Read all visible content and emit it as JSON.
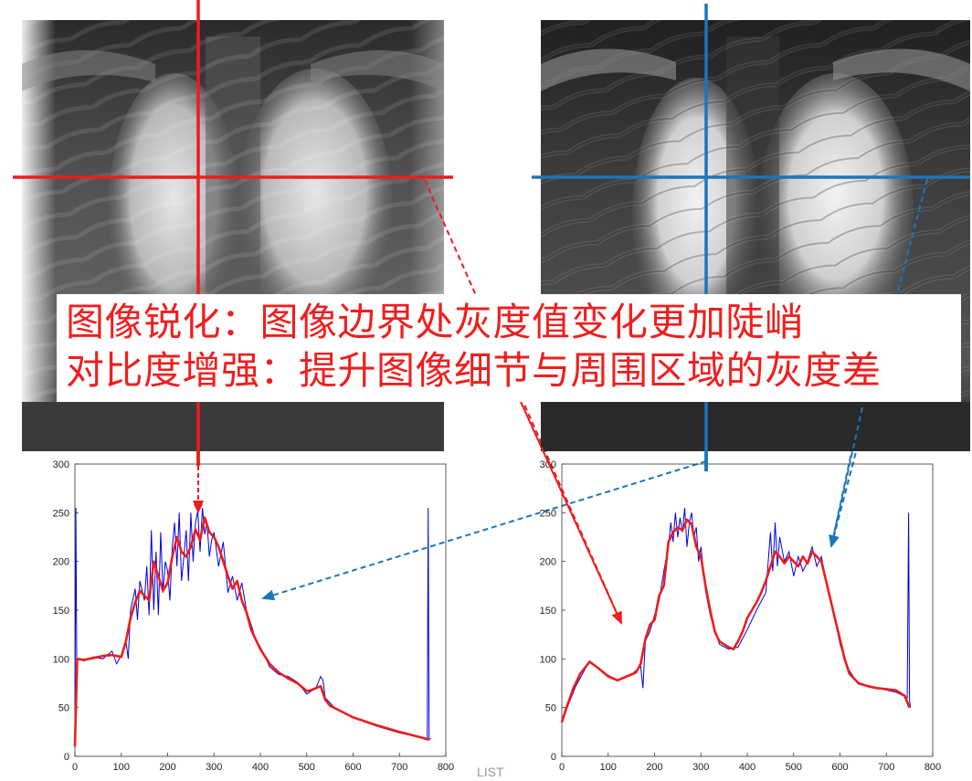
{
  "caption": {
    "line1": "图像锐化：图像边界处灰度值变化更加陡峭",
    "line2": "对比度增强：提升图像细节与周围区域的灰度差"
  },
  "watermark": "LIST",
  "colors": {
    "red_line": "#ee1c1c",
    "blue_line": "#1b75bc",
    "profile_raw": "#0000e6",
    "profile_smooth": "#ee1c1c"
  },
  "chart_data": [
    {
      "type": "line",
      "name": "original-profile",
      "xlim": [
        0,
        800
      ],
      "ylim": [
        0,
        300
      ],
      "xticks": [
        "0",
        "100",
        "200",
        "300",
        "400",
        "500",
        "600",
        "700",
        "800"
      ],
      "yticks": [
        "0",
        "50",
        "100",
        "150",
        "200",
        "250",
        "300"
      ],
      "smooth": {
        "x": [
          0,
          5,
          20,
          40,
          60,
          80,
          100,
          110,
          120,
          130,
          140,
          150,
          160,
          170,
          180,
          190,
          200,
          210,
          220,
          230,
          240,
          250,
          260,
          270,
          280,
          290,
          300,
          310,
          320,
          330,
          340,
          350,
          360,
          370,
          380,
          390,
          400,
          420,
          440,
          460,
          480,
          500,
          510,
          520,
          530,
          540,
          550,
          600,
          650,
          700,
          750,
          765
        ],
        "y": [
          10,
          100,
          99,
          101,
          103,
          104,
          102,
          118,
          142,
          158,
          170,
          165,
          160,
          200,
          185,
          170,
          178,
          205,
          225,
          210,
          205,
          215,
          233,
          222,
          245,
          230,
          225,
          215,
          200,
          185,
          172,
          180,
          160,
          148,
          130,
          120,
          110,
          95,
          86,
          80,
          75,
          67,
          68,
          70,
          72,
          58,
          52,
          40,
          32,
          25,
          19,
          17
        ]
      },
      "raw": {
        "x": [
          0,
          2,
          4,
          20,
          40,
          60,
          80,
          90,
          100,
          110,
          115,
          120,
          130,
          135,
          140,
          150,
          155,
          160,
          165,
          170,
          175,
          180,
          185,
          190,
          195,
          200,
          205,
          210,
          215,
          220,
          225,
          230,
          235,
          240,
          245,
          250,
          255,
          260,
          265,
          270,
          275,
          280,
          285,
          290,
          295,
          300,
          310,
          320,
          330,
          340,
          350,
          360,
          370,
          380,
          390,
          400,
          420,
          440,
          460,
          480,
          500,
          520,
          530,
          535,
          540,
          560,
          600,
          650,
          700,
          760,
          762,
          764,
          768
        ],
        "y": [
          20,
          255,
          100,
          98,
          102,
          100,
          108,
          95,
          104,
          118,
          100,
          150,
          172,
          140,
          180,
          160,
          195,
          145,
          232,
          150,
          210,
          145,
          230,
          168,
          200,
          190,
          160,
          215,
          240,
          195,
          250,
          180,
          205,
          232,
          180,
          250,
          200,
          240,
          252,
          210,
          255,
          228,
          240,
          205,
          222,
          230,
          195,
          220,
          168,
          185,
          160,
          178,
          150,
          135,
          120,
          112,
          92,
          84,
          82,
          76,
          64,
          70,
          82,
          78,
          60,
          50,
          40,
          31,
          24,
          18,
          255,
          18,
          18
        ]
      }
    },
    {
      "type": "line",
      "name": "enhanced-profile",
      "xlim": [
        0,
        800
      ],
      "ylim": [
        0,
        300
      ],
      "xticks": [
        "0",
        "100",
        "200",
        "300",
        "400",
        "500",
        "600",
        "700",
        "800"
      ],
      "yticks": [
        "0",
        "50",
        "100",
        "150",
        "200",
        "250",
        "300"
      ],
      "smooth": {
        "x": [
          0,
          10,
          25,
          40,
          60,
          80,
          100,
          120,
          140,
          160,
          170,
          180,
          190,
          200,
          210,
          220,
          230,
          240,
          250,
          260,
          270,
          280,
          290,
          300,
          310,
          320,
          330,
          340,
          350,
          360,
          370,
          380,
          390,
          400,
          410,
          420,
          430,
          440,
          450,
          460,
          470,
          480,
          490,
          500,
          510,
          520,
          530,
          540,
          550,
          560,
          570,
          580,
          590,
          600,
          610,
          620,
          640,
          660,
          680,
          700,
          720,
          740,
          750
        ],
        "y": [
          35,
          50,
          70,
          85,
          97,
          90,
          82,
          78,
          82,
          86,
          95,
          120,
          135,
          140,
          165,
          175,
          220,
          230,
          235,
          232,
          243,
          238,
          215,
          205,
          175,
          150,
          128,
          118,
          115,
          112,
          110,
          118,
          128,
          142,
          150,
          158,
          168,
          180,
          195,
          210,
          205,
          198,
          205,
          200,
          195,
          205,
          198,
          210,
          205,
          200,
          180,
          160,
          140,
          120,
          100,
          85,
          75,
          72,
          70,
          69,
          68,
          62,
          50
        ]
      },
      "raw": {
        "x": [
          0,
          10,
          30,
          60,
          90,
          120,
          150,
          170,
          175,
          180,
          190,
          200,
          210,
          220,
          230,
          235,
          240,
          245,
          250,
          255,
          260,
          265,
          270,
          275,
          280,
          285,
          290,
          295,
          300,
          310,
          320,
          330,
          340,
          360,
          380,
          400,
          420,
          440,
          450,
          455,
          460,
          465,
          470,
          480,
          490,
          500,
          510,
          520,
          530,
          540,
          550,
          560,
          570,
          580,
          590,
          600,
          610,
          620,
          640,
          680,
          720,
          745,
          748,
          750,
          752
        ],
        "y": [
          38,
          48,
          72,
          98,
          86,
          78,
          84,
          92,
          70,
          118,
          128,
          145,
          160,
          190,
          215,
          240,
          220,
          250,
          225,
          245,
          230,
          255,
          215,
          240,
          250,
          225,
          235,
          200,
          215,
          170,
          145,
          130,
          115,
          110,
          112,
          130,
          150,
          168,
          230,
          190,
          240,
          195,
          225,
          200,
          210,
          185,
          205,
          190,
          200,
          215,
          195,
          205,
          180,
          160,
          140,
          115,
          100,
          88,
          74,
          70,
          66,
          60,
          250,
          58,
          50
        ]
      }
    }
  ]
}
